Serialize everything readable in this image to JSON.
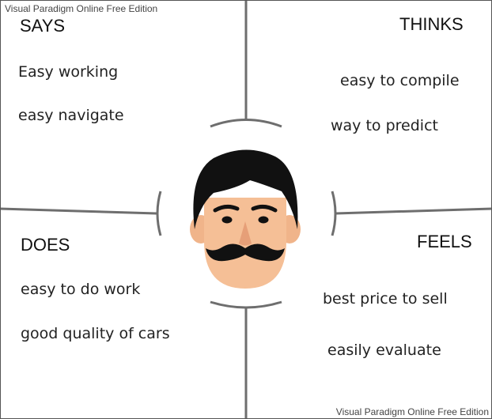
{
  "watermark": {
    "top": "Visual Paradigm Online Free Edition",
    "bottom": "Visual Paradigm Online Free Edition"
  },
  "quadrants": {
    "says": {
      "heading": "SAYS",
      "notes": [
        "Easy working",
        "easy navigate"
      ]
    },
    "thinks": {
      "heading": "THINKS",
      "notes": [
        "easy to compile",
        "way to predict"
      ]
    },
    "does": {
      "heading": "DOES",
      "notes": [
        "easy to do work",
        "good quality of cars"
      ]
    },
    "feels": {
      "heading": "FEELS",
      "notes": [
        "best price to sell",
        "easily evaluate"
      ]
    }
  },
  "persona": {
    "icon": "man-with-mustache-icon",
    "colors": {
      "hair": "#111111",
      "skin": "#f5bf96",
      "ear": "#f0b48a",
      "mustache": "#111111",
      "nose": "#e69f78"
    }
  },
  "colors": {
    "divider": "#6e6e6e",
    "frame": "#555555",
    "text": "#222222"
  }
}
